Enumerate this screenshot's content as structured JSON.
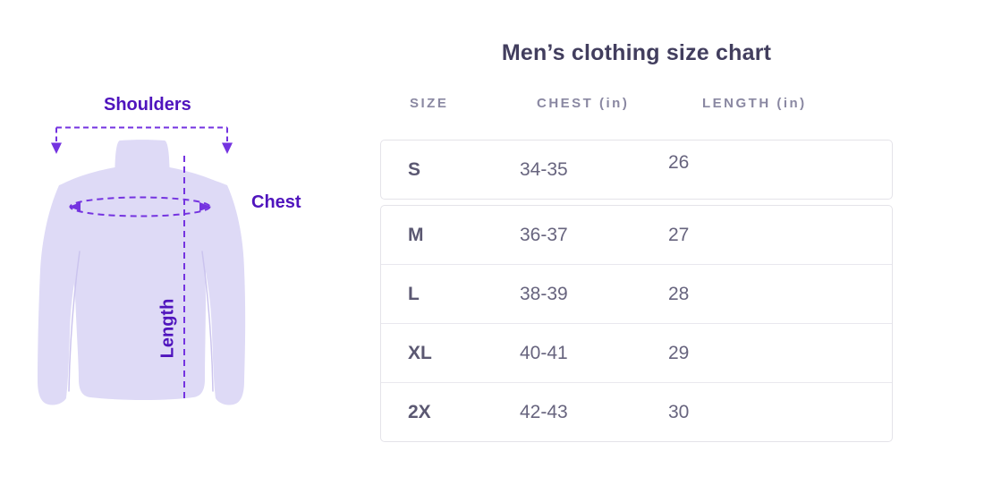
{
  "colors": {
    "background": "#FFFFFF",
    "shirt_fill": "#DEDAF6",
    "seam": "#CBC4EE",
    "annotation": "#7433E0",
    "label_text": "#4F14BD",
    "title_text": "#423E5E",
    "header_text": "#8A88A2",
    "cell_text": "#67647E",
    "size_text": "#5B5872",
    "card_border": "#E4E3E9",
    "divider": "#E9E8EE"
  },
  "illustration": {
    "shoulders_label": "Shoulders",
    "chest_label": "Chest",
    "length_label": "Length"
  },
  "table": {
    "title": "Men’s clothing size chart",
    "headers": [
      "SIZE",
      "CHEST (in)",
      "LENGTH (in)"
    ],
    "rows": [
      {
        "size": "S",
        "chest": "34-35",
        "length": "26"
      },
      {
        "size": "M",
        "chest": "36-37",
        "length": "27"
      },
      {
        "size": "L",
        "chest": "38-39",
        "length": "28"
      },
      {
        "size": "XL",
        "chest": "40-41",
        "length": "29"
      },
      {
        "size": "2X",
        "chest": "42-43",
        "length": "30"
      }
    ]
  },
  "chart_data": {
    "type": "table",
    "title": "Men’s clothing size chart",
    "columns": [
      "SIZE",
      "CHEST (in)",
      "LENGTH (in)"
    ],
    "rows": [
      [
        "S",
        "34-35",
        "26"
      ],
      [
        "M",
        "36-37",
        "27"
      ],
      [
        "L",
        "38-39",
        "28"
      ],
      [
        "XL",
        "40-41",
        "29"
      ],
      [
        "2X",
        "42-43",
        "30"
      ]
    ],
    "units": "inches",
    "annotations": [
      "Shoulders",
      "Chest",
      "Length"
    ]
  }
}
